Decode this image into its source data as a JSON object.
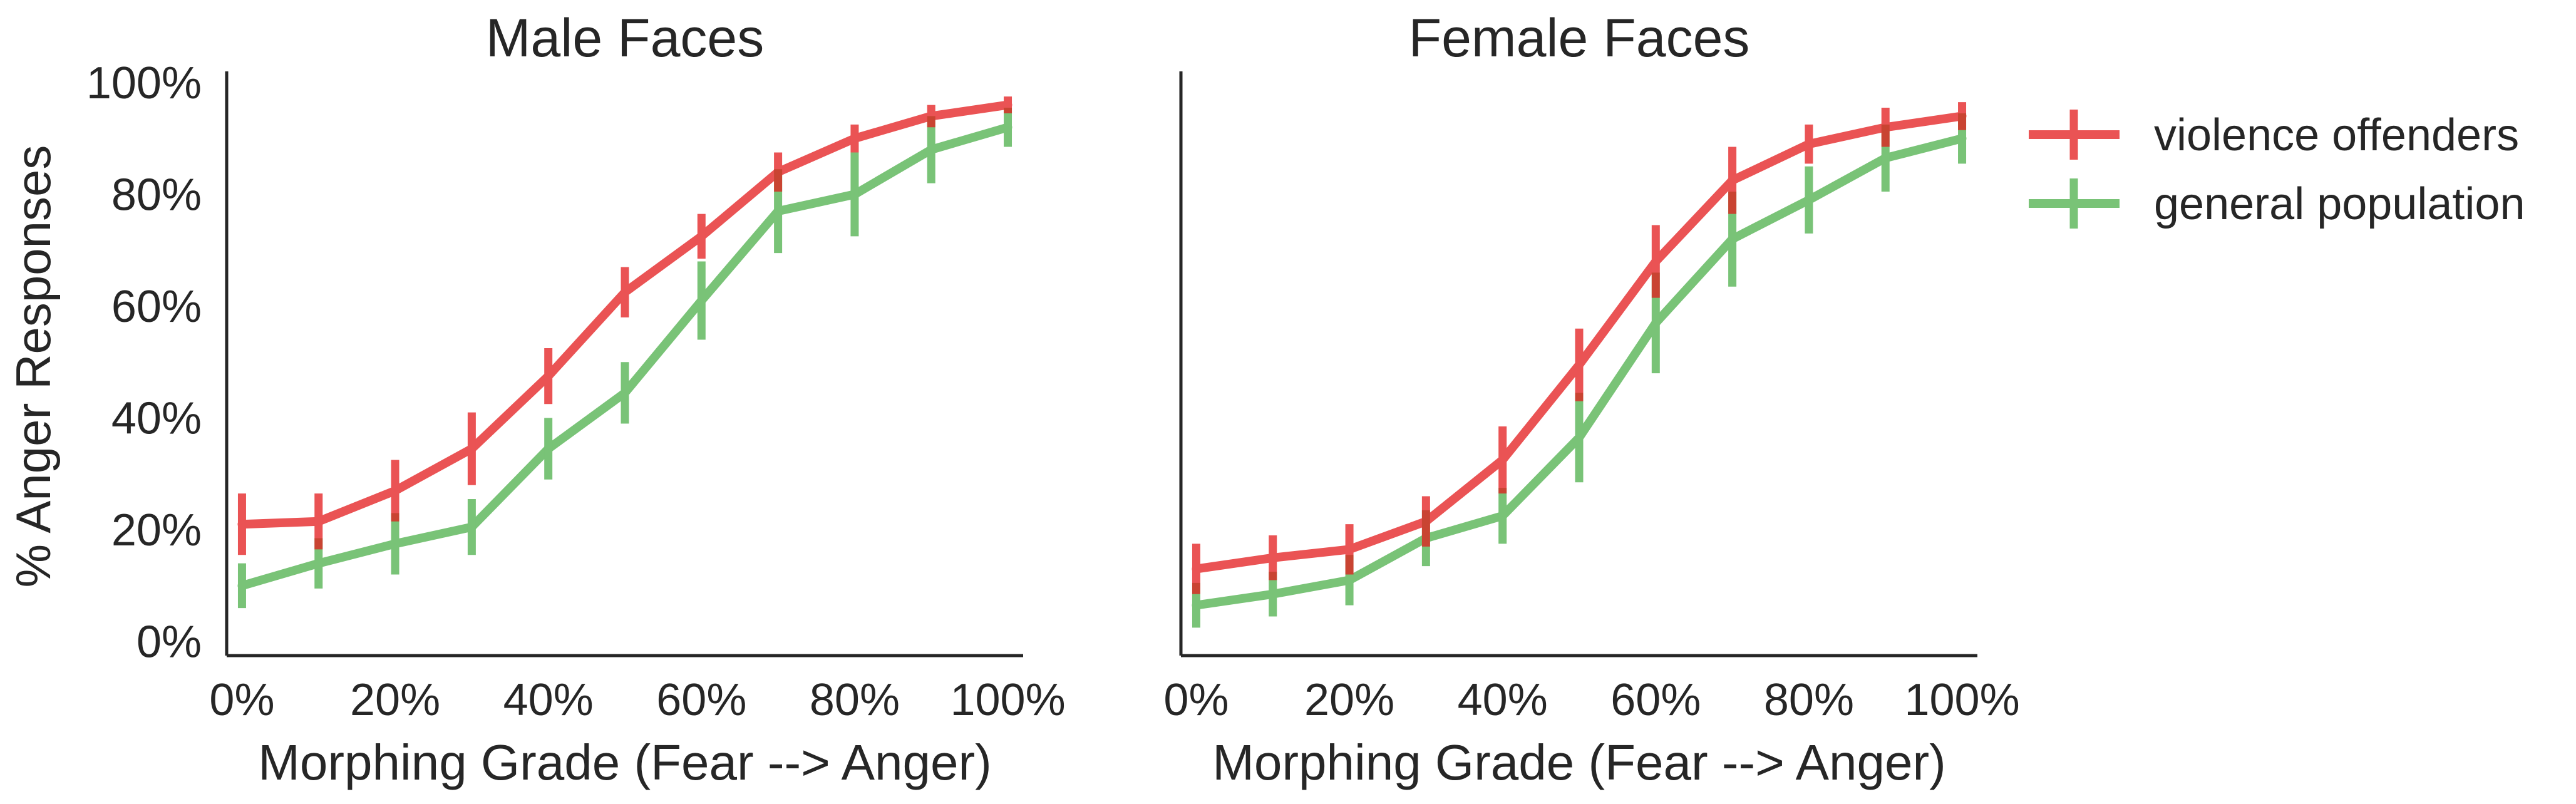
{
  "figure": {
    "ylabel": "% Anger Responses"
  },
  "legend": {
    "placement": "right",
    "entries": [
      {
        "label": "violence offenders",
        "color": "#e41a1c"
      },
      {
        "label": "general population",
        "color": "#4daf4a"
      }
    ]
  },
  "chart_data": [
    {
      "type": "line",
      "title": "Male Faces",
      "xlabel": "Morphing Grade (Fear --> Anger)",
      "ylabel": "% Anger Responses",
      "x": [
        0,
        10,
        20,
        30,
        40,
        50,
        60,
        70,
        80,
        90,
        100
      ],
      "xticks": [
        0,
        20,
        40,
        60,
        80,
        100
      ],
      "xtick_labels": [
        "0%",
        "20%",
        "40%",
        "60%",
        "80%",
        "100%"
      ],
      "yticks": [
        0,
        20,
        40,
        60,
        80,
        100
      ],
      "ytick_labels": [
        "0%",
        "20%",
        "40%",
        "60%",
        "80%",
        "100%"
      ],
      "xlim": [
        -2,
        102
      ],
      "ylim": [
        -2.5,
        102
      ],
      "grid": false,
      "error_bars": true,
      "series": [
        {
          "name": "violence offenders",
          "color": "#e41a1c",
          "values": [
            21,
            21.5,
            27,
            34.5,
            47.5,
            62.5,
            72.5,
            84,
            90,
            94,
            96
          ],
          "error": [
            5.5,
            5,
            5.5,
            6.5,
            5,
            4.5,
            4,
            3.5,
            2.5,
            2,
            1.5
          ]
        },
        {
          "name": "general population",
          "color": "#4daf4a",
          "values": [
            10,
            14,
            17.5,
            20.5,
            34.5,
            44.5,
            61,
            77,
            80,
            88,
            92
          ],
          "error": [
            4,
            4.5,
            5.5,
            5,
            5.5,
            5.5,
            7,
            7.5,
            7.5,
            6,
            3.5
          ]
        }
      ]
    },
    {
      "type": "line",
      "title": "Female Faces",
      "xlabel": "Morphing Grade (Fear --> Anger)",
      "x": [
        0,
        10,
        20,
        30,
        40,
        50,
        60,
        70,
        80,
        90,
        100
      ],
      "xticks": [
        0,
        20,
        40,
        60,
        80,
        100
      ],
      "xtick_labels": [
        "0%",
        "20%",
        "40%",
        "60%",
        "80%",
        "100%"
      ],
      "ylim": [
        -2.5,
        102
      ],
      "xlim": [
        -2,
        102
      ],
      "grid": false,
      "error_bars": true,
      "series": [
        {
          "name": "violence offenders",
          "color": "#e41a1c",
          "values": [
            13,
            15,
            16.5,
            21.5,
            32.5,
            49.5,
            68,
            82.5,
            89,
            92,
            94
          ],
          "error": [
            4.5,
            4,
            4.5,
            4.5,
            6,
            6.5,
            6.5,
            6,
            3.5,
            3.5,
            2.5
          ]
        },
        {
          "name": "general population",
          "color": "#4daf4a",
          "values": [
            6.5,
            8.5,
            11,
            18.5,
            22.5,
            36.5,
            57,
            72,
            79,
            86.5,
            90
          ],
          "error": [
            4,
            4,
            4.5,
            5,
            5,
            8,
            9,
            8.5,
            6,
            6,
            4.5
          ]
        }
      ]
    }
  ]
}
